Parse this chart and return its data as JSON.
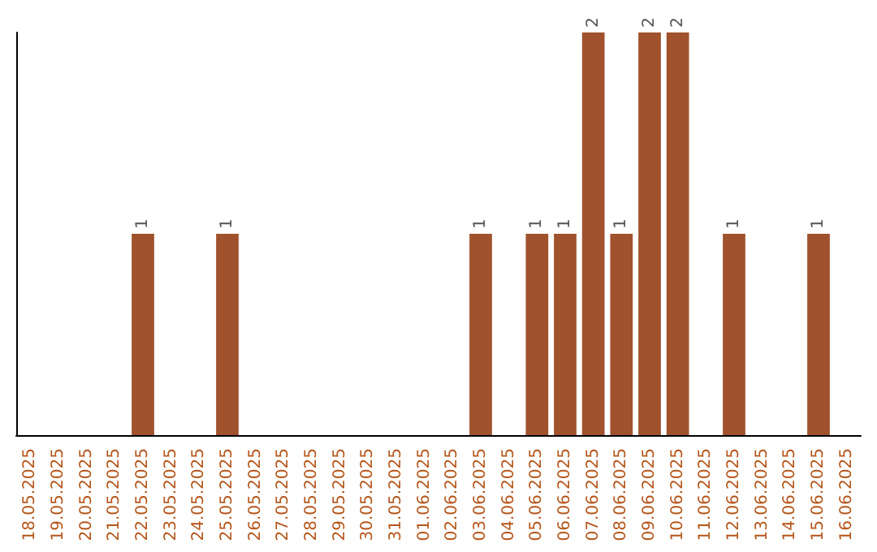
{
  "chart_data": {
    "type": "bar",
    "categories": [
      "18.05.2025",
      "19.05.2025",
      "20.05.2025",
      "21.05.2025",
      "22.05.2025",
      "23.05.2025",
      "24.05.2025",
      "25.05.2025",
      "26.05.2025",
      "27.05.2025",
      "28.05.2025",
      "29.05.2025",
      "30.05.2025",
      "31.05.2025",
      "01.06.2025",
      "02.06.2025",
      "03.06.2025",
      "04.06.2025",
      "05.06.2025",
      "06.06.2025",
      "07.06.2025",
      "08.06.2025",
      "09.06.2025",
      "10.06.2025",
      "11.06.2025",
      "12.06.2025",
      "13.06.2025",
      "14.06.2025",
      "15.06.2025",
      "16.06.2025"
    ],
    "values": [
      0,
      0,
      0,
      0,
      1,
      0,
      0,
      1,
      0,
      0,
      0,
      0,
      0,
      0,
      0,
      0,
      1,
      0,
      1,
      1,
      2,
      1,
      2,
      2,
      0,
      1,
      0,
      0,
      1,
      0
    ],
    "value_labels": [
      null,
      null,
      null,
      null,
      "1",
      null,
      null,
      "1",
      null,
      null,
      null,
      null,
      null,
      null,
      null,
      null,
      "1",
      null,
      "1",
      "1",
      "2",
      "1",
      "2",
      "2",
      null,
      "1",
      null,
      null,
      "1",
      null
    ],
    "color": "#a0522d",
    "tick_labels": "x"
  }
}
